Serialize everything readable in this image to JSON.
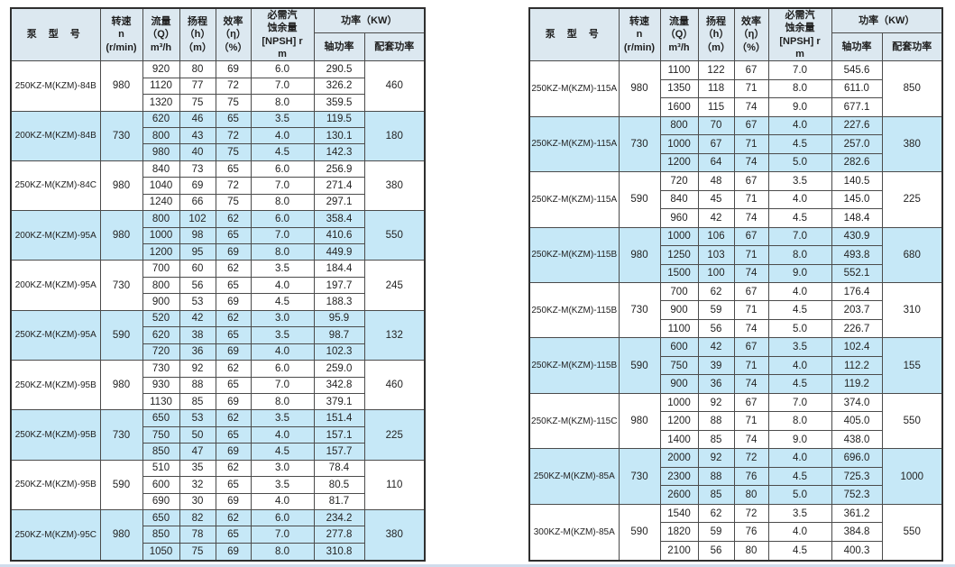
{
  "colors": {
    "row_shade": "#c6e8f7",
    "header_bg": "#dce8f0",
    "grid_line": "#4b4b4b",
    "page_bottom_strip": "#cfdcec"
  },
  "columns": {
    "model": "泵 型 号",
    "speed": [
      "转速",
      "n",
      "(r/min)"
    ],
    "flow": [
      "流量",
      "（Q）",
      "m³/h"
    ],
    "head": [
      "扬程",
      "（h）",
      "（m）"
    ],
    "efficiency": [
      "效率",
      "（η）",
      "（%）"
    ],
    "npsh": [
      "必需汽",
      "蚀余量",
      "[NPSH] r",
      "m"
    ],
    "power": "功率（KW）",
    "shaft_power": "轴功率",
    "matching_power": "配套功率"
  },
  "left_table": {
    "groups": [
      {
        "model": "250KZ-M(KZM)-84B",
        "speed": "980",
        "shaded": false,
        "matching": "460",
        "rows": [
          [
            "920",
            "80",
            "69",
            "6.0",
            "290.5"
          ],
          [
            "1120",
            "77",
            "72",
            "7.0",
            "326.2"
          ],
          [
            "1320",
            "75",
            "75",
            "8.0",
            "359.5"
          ]
        ]
      },
      {
        "model": "200KZ-M(KZM)-84B",
        "speed": "730",
        "shaded": true,
        "matching": "180",
        "rows": [
          [
            "620",
            "46",
            "65",
            "3.5",
            "119.5"
          ],
          [
            "800",
            "43",
            "72",
            "4.0",
            "130.1"
          ],
          [
            "980",
            "40",
            "75",
            "4.5",
            "142.3"
          ]
        ]
      },
      {
        "model": "250KZ-M(KZM)-84C",
        "speed": "980",
        "shaded": false,
        "matching": "380",
        "rows": [
          [
            "840",
            "73",
            "65",
            "6.0",
            "256.9"
          ],
          [
            "1040",
            "69",
            "72",
            "7.0",
            "271.4"
          ],
          [
            "1240",
            "66",
            "75",
            "8.0",
            "297.1"
          ]
        ]
      },
      {
        "model": "200KZ-M(KZM)-95A",
        "speed": "980",
        "shaded": true,
        "matching": "550",
        "rows": [
          [
            "800",
            "102",
            "62",
            "6.0",
            "358.4"
          ],
          [
            "1000",
            "98",
            "65",
            "7.0",
            "410.6"
          ],
          [
            "1200",
            "95",
            "69",
            "8.0",
            "449.9"
          ]
        ]
      },
      {
        "model": "200KZ-M(KZM)-95A",
        "speed": "730",
        "shaded": false,
        "matching": "245",
        "rows": [
          [
            "700",
            "60",
            "62",
            "3.5",
            "184.4"
          ],
          [
            "800",
            "56",
            "65",
            "4.0",
            "197.7"
          ],
          [
            "900",
            "53",
            "69",
            "4.5",
            "188.3"
          ]
        ]
      },
      {
        "model": "250KZ-M(KZM)-95A",
        "speed": "590",
        "shaded": true,
        "matching": "132",
        "rows": [
          [
            "520",
            "42",
            "62",
            "3.0",
            "95.9"
          ],
          [
            "620",
            "38",
            "65",
            "3.5",
            "98.7"
          ],
          [
            "720",
            "36",
            "69",
            "4.0",
            "102.3"
          ]
        ]
      },
      {
        "model": "250KZ-M(KZM)-95B",
        "speed": "980",
        "shaded": false,
        "matching": "460",
        "rows": [
          [
            "730",
            "92",
            "62",
            "6.0",
            "259.0"
          ],
          [
            "930",
            "88",
            "65",
            "7.0",
            "342.8"
          ],
          [
            "1130",
            "85",
            "69",
            "8.0",
            "379.1"
          ]
        ]
      },
      {
        "model": "250KZ-M(KZM)-95B",
        "speed": "730",
        "shaded": true,
        "matching": "225",
        "rows": [
          [
            "650",
            "53",
            "62",
            "3.5",
            "151.4"
          ],
          [
            "750",
            "50",
            "65",
            "4.0",
            "157.1"
          ],
          [
            "850",
            "47",
            "69",
            "4.5",
            "157.7"
          ]
        ]
      },
      {
        "model": "250KZ-M(KZM)-95B",
        "speed": "590",
        "shaded": false,
        "matching": "110",
        "rows": [
          [
            "510",
            "35",
            "62",
            "3.0",
            "78.4"
          ],
          [
            "600",
            "32",
            "65",
            "3.5",
            "80.5"
          ],
          [
            "690",
            "30",
            "69",
            "4.0",
            "81.7"
          ]
        ]
      },
      {
        "model": "250KZ-M(KZM)-95C",
        "speed": "980",
        "shaded": true,
        "matching": "380",
        "rows": [
          [
            "650",
            "82",
            "62",
            "6.0",
            "234.2"
          ],
          [
            "850",
            "78",
            "65",
            "7.0",
            "277.8"
          ],
          [
            "1050",
            "75",
            "69",
            "8.0",
            "310.8"
          ]
        ]
      }
    ]
  },
  "right_table": {
    "groups": [
      {
        "model": "250KZ-M(KZM)-115A",
        "speed": "980",
        "shaded": false,
        "matching": "850",
        "rows": [
          [
            "1100",
            "122",
            "67",
            "7.0",
            "545.6"
          ],
          [
            "1350",
            "118",
            "71",
            "8.0",
            "611.0"
          ],
          [
            "1600",
            "115",
            "74",
            "9.0",
            "677.1"
          ]
        ]
      },
      {
        "model": "250KZ-M(KZM)-115A",
        "speed": "730",
        "shaded": true,
        "matching": "380",
        "rows": [
          [
            "800",
            "70",
            "67",
            "4.0",
            "227.6"
          ],
          [
            "1000",
            "67",
            "71",
            "4.5",
            "257.0"
          ],
          [
            "1200",
            "64",
            "74",
            "5.0",
            "282.6"
          ]
        ]
      },
      {
        "model": "250KZ-M(KZM)-115A",
        "speed": "590",
        "shaded": false,
        "matching": "225",
        "rows": [
          [
            "720",
            "48",
            "67",
            "3.5",
            "140.5"
          ],
          [
            "840",
            "45",
            "71",
            "4.0",
            "145.0"
          ],
          [
            "960",
            "42",
            "74",
            "4.5",
            "148.4"
          ]
        ]
      },
      {
        "model": "250KZ-M(KZM)-115B",
        "speed": "980",
        "shaded": true,
        "matching": "680",
        "rows": [
          [
            "1000",
            "106",
            "67",
            "7.0",
            "430.9"
          ],
          [
            "1250",
            "103",
            "71",
            "8.0",
            "493.8"
          ],
          [
            "1500",
            "100",
            "74",
            "9.0",
            "552.1"
          ]
        ]
      },
      {
        "model": "250KZ-M(KZM)-115B",
        "speed": "730",
        "shaded": false,
        "matching": "310",
        "rows": [
          [
            "700",
            "62",
            "67",
            "4.0",
            "176.4"
          ],
          [
            "900",
            "59",
            "71",
            "4.5",
            "203.7"
          ],
          [
            "1100",
            "56",
            "74",
            "5.0",
            "226.7"
          ]
        ]
      },
      {
        "model": "250KZ-M(KZM)-115B",
        "speed": "590",
        "shaded": true,
        "matching": "155",
        "rows": [
          [
            "600",
            "42",
            "67",
            "3.5",
            "102.4"
          ],
          [
            "750",
            "39",
            "71",
            "4.0",
            "112.2"
          ],
          [
            "900",
            "36",
            "74",
            "4.5",
            "119.2"
          ]
        ]
      },
      {
        "model": "250KZ-M(KZM)-115C",
        "speed": "980",
        "shaded": false,
        "matching": "550",
        "rows": [
          [
            "1000",
            "92",
            "67",
            "7.0",
            "374.0"
          ],
          [
            "1200",
            "88",
            "71",
            "8.0",
            "405.0"
          ],
          [
            "1400",
            "85",
            "74",
            "9.0",
            "438.0"
          ]
        ]
      },
      {
        "model": "250KZ-M(KZM)-85A",
        "speed": "730",
        "shaded": true,
        "matching": "1000",
        "rows": [
          [
            "2000",
            "92",
            "72",
            "4.0",
            "696.0"
          ],
          [
            "2300",
            "88",
            "76",
            "4.5",
            "725.3"
          ],
          [
            "2600",
            "85",
            "80",
            "5.0",
            "752.3"
          ]
        ]
      },
      {
        "model": "300KZ-M(KZM)-85A",
        "speed": "590",
        "shaded": false,
        "matching": "550",
        "rows": [
          [
            "1540",
            "62",
            "72",
            "3.5",
            "361.2"
          ],
          [
            "1820",
            "59",
            "76",
            "4.0",
            "384.8"
          ],
          [
            "2100",
            "56",
            "80",
            "4.5",
            "400.3"
          ]
        ]
      }
    ]
  }
}
